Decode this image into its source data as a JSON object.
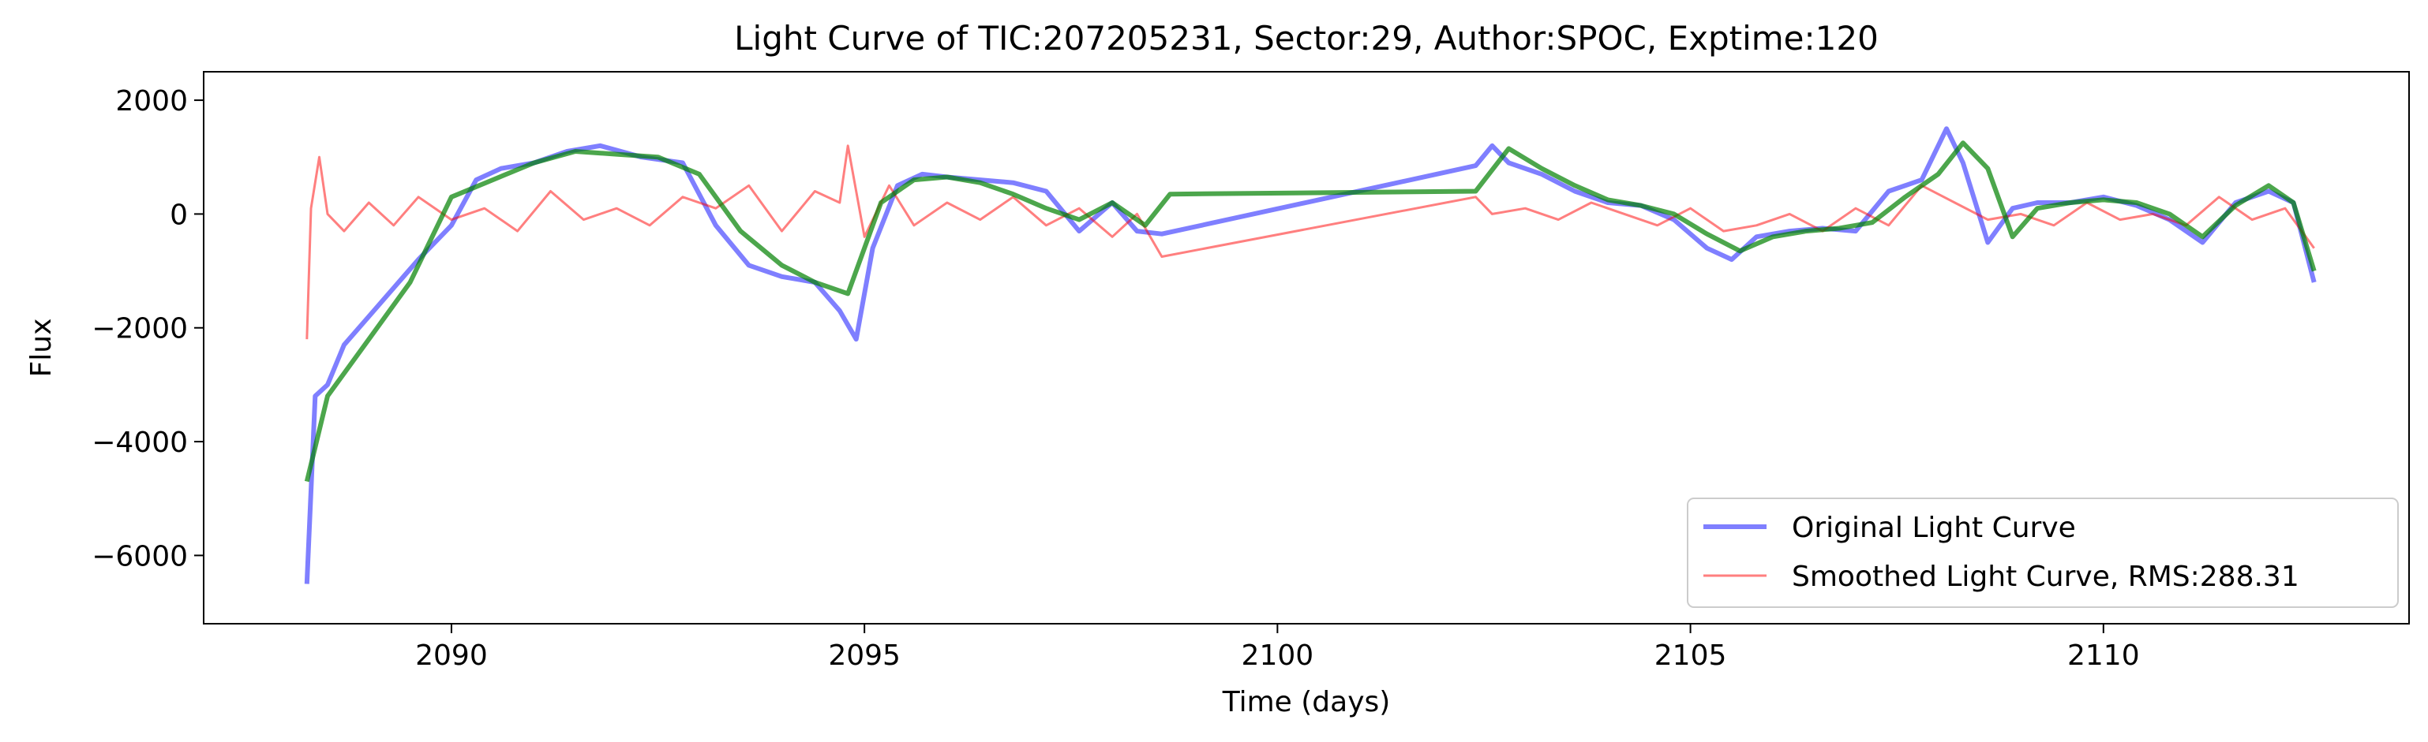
{
  "chart_data": {
    "type": "line",
    "title": "Light Curve of TIC:207205231, Sector:29, Author:SPOC, Exptime:120",
    "xlabel": "Time (days)",
    "ylabel": "Flux",
    "xlim": [
      2087,
      2113.7
    ],
    "ylim": [
      -7200,
      2500
    ],
    "xticks": [
      2090,
      2095,
      2100,
      2105,
      2110
    ],
    "yticks": [
      -6000,
      -4000,
      -2000,
      0,
      2000
    ],
    "ytick_labels": [
      "−6000",
      "−4000",
      "−2000",
      "0",
      "2000"
    ],
    "grid": false,
    "legend_position": "lower right",
    "series": [
      {
        "name": "Original Light Curve",
        "color": "#0000ff",
        "alpha": 0.5,
        "linewidth": "thick",
        "x": [
          2088.25,
          2088.35,
          2088.5,
          2088.7,
          2089.0,
          2089.3,
          2089.6,
          2090.0,
          2090.3,
          2090.6,
          2091.0,
          2091.4,
          2091.8,
          2092.3,
          2092.8,
          2093.2,
          2093.6,
          2094.0,
          2094.4,
          2094.7,
          2094.9,
          2095.1,
          2095.4,
          2095.7,
          2096.0,
          2096.4,
          2096.8,
          2097.2,
          2097.6,
          2098.0,
          2098.3,
          2098.6,
          2102.4,
          2102.6,
          2102.8,
          2103.2,
          2103.6,
          2104.0,
          2104.4,
          2104.8,
          2105.2,
          2105.5,
          2105.8,
          2106.2,
          2106.6,
          2107.0,
          2107.4,
          2107.8,
          2108.1,
          2108.3,
          2108.6,
          2108.9,
          2109.2,
          2109.6,
          2110.0,
          2110.4,
          2110.8,
          2111.2,
          2111.6,
          2112.0,
          2112.3,
          2112.55
        ],
        "y": [
          -6500,
          -3200,
          -3000,
          -2300,
          -1800,
          -1300,
          -800,
          -200,
          600,
          800,
          900,
          1100,
          1200,
          1000,
          900,
          -200,
          -900,
          -1100,
          -1200,
          -1700,
          -2200,
          -600,
          500,
          700,
          650,
          600,
          550,
          400,
          -300,
          200,
          -300,
          -350,
          850,
          1200,
          900,
          700,
          400,
          200,
          150,
          -100,
          -600,
          -800,
          -400,
          -300,
          -250,
          -300,
          400,
          600,
          1500,
          900,
          -500,
          100,
          200,
          200,
          300,
          150,
          -100,
          -500,
          200,
          400,
          200,
          -1200
        ]
      },
      {
        "name": "Smoothed Light Curve, RMS:288.31",
        "color": "#ff0000",
        "alpha": 0.5,
        "linewidth": "thin",
        "x": [
          2088.25,
          2088.3,
          2088.4,
          2088.5,
          2088.7,
          2089.0,
          2089.3,
          2089.6,
          2090.0,
          2090.4,
          2090.8,
          2091.2,
          2091.6,
          2092.0,
          2092.4,
          2092.8,
          2093.2,
          2093.6,
          2094.0,
          2094.4,
          2094.7,
          2094.8,
          2095.0,
          2095.3,
          2095.6,
          2096.0,
          2096.4,
          2096.8,
          2097.2,
          2097.6,
          2098.0,
          2098.3,
          2098.6,
          2102.4,
          2102.6,
          2103.0,
          2103.4,
          2103.8,
          2104.2,
          2104.6,
          2105.0,
          2105.4,
          2105.8,
          2106.2,
          2106.6,
          2107.0,
          2107.4,
          2107.8,
          2108.2,
          2108.6,
          2109.0,
          2109.4,
          2109.8,
          2110.2,
          2110.6,
          2111.0,
          2111.4,
          2111.8,
          2112.2,
          2112.55
        ],
        "y": [
          -2200,
          100,
          1000,
          0,
          -300,
          200,
          -200,
          300,
          -100,
          100,
          -300,
          400,
          -100,
          100,
          -200,
          300,
          100,
          500,
          -300,
          400,
          200,
          1200,
          -400,
          500,
          -200,
          200,
          -100,
          300,
          -200,
          100,
          -400,
          0,
          -750,
          300,
          0,
          100,
          -100,
          200,
          0,
          -200,
          100,
          -300,
          -200,
          0,
          -300,
          100,
          -200,
          500,
          200,
          -100,
          0,
          -200,
          200,
          -100,
          0,
          -200,
          300,
          -100,
          100,
          -600
        ]
      },
      {
        "name": "",
        "color": "#008000",
        "alpha": 0.7,
        "linewidth": "thick",
        "x": [
          2088.25,
          2088.5,
          2089.0,
          2089.5,
          2090.0,
          2090.5,
          2091.0,
          2091.5,
          2092.0,
          2092.5,
          2093.0,
          2093.5,
          2094.0,
          2094.4,
          2094.8,
          2095.2,
          2095.6,
          2096.0,
          2096.4,
          2096.8,
          2097.2,
          2097.6,
          2098.0,
          2098.4,
          2098.7,
          2102.4,
          2102.8,
          2103.2,
          2103.6,
          2104.0,
          2104.4,
          2104.8,
          2105.2,
          2105.6,
          2106.0,
          2106.4,
          2106.8,
          2107.2,
          2107.6,
          2108.0,
          2108.3,
          2108.6,
          2108.9,
          2109.2,
          2109.6,
          2110.0,
          2110.4,
          2110.8,
          2111.2,
          2111.6,
          2112.0,
          2112.3,
          2112.55
        ],
        "y": [
          -4700,
          -3200,
          -2200,
          -1200,
          300,
          600,
          900,
          1100,
          1050,
          1000,
          700,
          -300,
          -900,
          -1200,
          -1400,
          200,
          600,
          650,
          550,
          350,
          100,
          -100,
          200,
          -200,
          350,
          400,
          1150,
          800,
          500,
          250,
          150,
          0,
          -350,
          -650,
          -400,
          -300,
          -250,
          -150,
          300,
          700,
          1250,
          800,
          -400,
          100,
          200,
          250,
          200,
          0,
          -400,
          150,
          500,
          200,
          -1000
        ]
      }
    ]
  }
}
